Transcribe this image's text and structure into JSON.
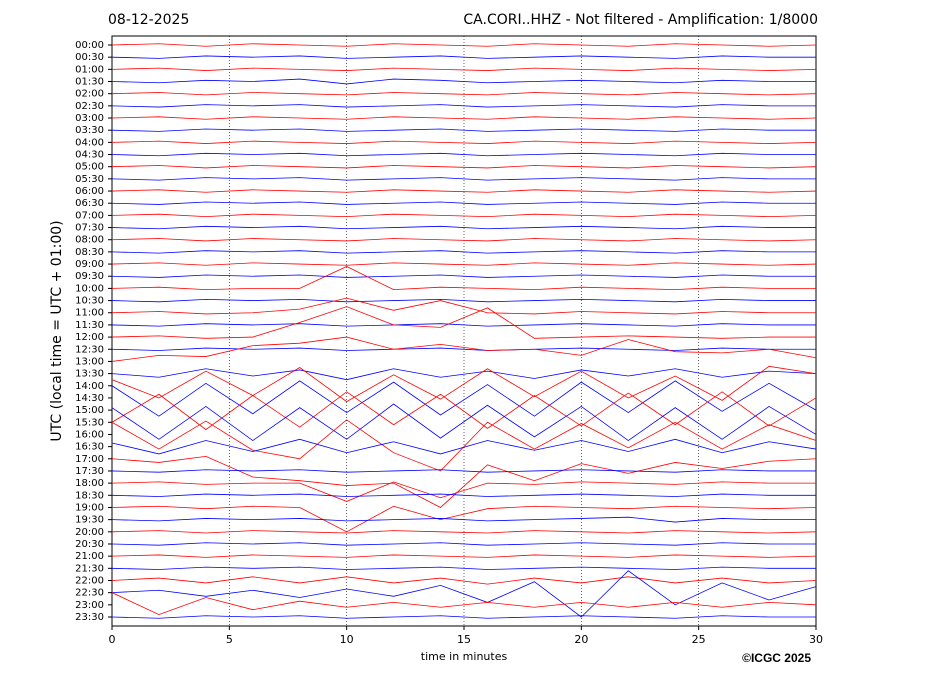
{
  "chart_data": {
    "type": "helicorder",
    "title_left": "08-12-2025",
    "title": "CA.CORI..HHZ - Not filtered - Amplification: 1/8000",
    "xlabel": "time in minutes",
    "ylabel": "UTC (local time = UTC + 01:00)",
    "footer": "©ICGC 2025",
    "grid": true,
    "colors": [
      "#ff0000",
      "#0000ff"
    ],
    "xlim": [
      0,
      30
    ],
    "xticks": [
      0,
      5,
      10,
      15,
      20,
      25,
      30
    ],
    "x": [
      0,
      2,
      4,
      6,
      8,
      10,
      12,
      14,
      16,
      18,
      20,
      22,
      24,
      26,
      28,
      30
    ],
    "categories": [
      "00:00",
      "00:30",
      "01:00",
      "01:30",
      "02:00",
      "02:30",
      "03:00",
      "03:30",
      "04:00",
      "04:30",
      "05:00",
      "05:30",
      "06:00",
      "06:30",
      "07:00",
      "07:30",
      "08:00",
      "08:30",
      "09:00",
      "09:30",
      "10:00",
      "10:30",
      "11:00",
      "11:30",
      "12:00",
      "12:30",
      "13:00",
      "13:30",
      "14:00",
      "14:30",
      "15:00",
      "15:30",
      "16:00",
      "16:30",
      "17:00",
      "17:30",
      "18:00",
      "18:30",
      "19:00",
      "19:30",
      "20:00",
      "20:30",
      "21:00",
      "21:30",
      "22:00",
      "22:30",
      "23:00",
      "23:30"
    ],
    "series": [
      {
        "values": [
          0,
          0.1,
          -0.1,
          0.1,
          0,
          -0.1,
          0.1,
          0,
          -0.1,
          0.1,
          0,
          -0.1,
          0.1,
          0,
          -0.1,
          0
        ]
      },
      {
        "values": [
          0,
          -0.1,
          0.1,
          0,
          0.1,
          -0.1,
          0,
          0.1,
          -0.1,
          0,
          0.1,
          0,
          -0.1,
          0.1,
          0,
          0
        ]
      },
      {
        "values": [
          0,
          0.1,
          -0.1,
          0.1,
          0,
          -0.1,
          0.1,
          0,
          -0.1,
          0.1,
          0,
          -0.1,
          0.1,
          0,
          -0.1,
          0
        ]
      },
      {
        "values": [
          0,
          -0.1,
          0.1,
          0,
          0.2,
          -0.2,
          0.2,
          0.1,
          -0.1,
          0,
          0.1,
          0,
          -0.1,
          0.1,
          0,
          0
        ]
      },
      {
        "values": [
          0,
          0.1,
          -0.1,
          0.1,
          0,
          -0.1,
          0.1,
          0,
          -0.1,
          0.1,
          0,
          -0.1,
          0.1,
          0,
          -0.1,
          0
        ]
      },
      {
        "values": [
          0,
          -0.1,
          0.1,
          0,
          0.1,
          -0.1,
          0,
          0.1,
          -0.1,
          0,
          0.1,
          0,
          -0.1,
          0.1,
          0,
          0
        ]
      },
      {
        "values": [
          0,
          0.1,
          -0.1,
          0.1,
          0,
          -0.1,
          0.1,
          0,
          -0.1,
          0.1,
          0,
          -0.1,
          0.1,
          0,
          -0.1,
          0
        ]
      },
      {
        "values": [
          0,
          -0.1,
          0.1,
          0,
          0.1,
          -0.1,
          0,
          0.1,
          -0.1,
          0,
          0.1,
          0,
          -0.1,
          0.1,
          0,
          0
        ]
      },
      {
        "values": [
          0,
          0.1,
          -0.1,
          0.1,
          0,
          -0.1,
          0.1,
          0,
          -0.1,
          0.1,
          0,
          -0.1,
          0.1,
          0,
          -0.1,
          0
        ]
      },
      {
        "values": [
          0,
          -0.1,
          0.1,
          0,
          0.1,
          -0.1,
          0,
          0.1,
          -0.1,
          0,
          0.1,
          0,
          -0.1,
          0.1,
          0,
          0
        ]
      },
      {
        "values": [
          0,
          0.1,
          -0.1,
          0.1,
          0,
          -0.1,
          0.1,
          0,
          -0.1,
          0.1,
          0,
          -0.1,
          0.1,
          0,
          -0.1,
          0
        ]
      },
      {
        "values": [
          0,
          -0.1,
          0.1,
          0,
          0.1,
          -0.1,
          0,
          0.1,
          -0.1,
          0,
          0.1,
          0,
          -0.1,
          0.1,
          0,
          0
        ]
      },
      {
        "values": [
          0,
          0.1,
          -0.1,
          0.1,
          0,
          -0.1,
          0.1,
          0,
          -0.1,
          0.1,
          0,
          -0.1,
          0.1,
          0,
          -0.1,
          0
        ]
      },
      {
        "values": [
          0,
          -0.1,
          0.1,
          0,
          0.1,
          -0.1,
          0,
          0.1,
          -0.1,
          0,
          0.1,
          0,
          -0.1,
          0.1,
          0,
          0
        ]
      },
      {
        "values": [
          0,
          0.1,
          -0.1,
          0.1,
          0,
          -0.1,
          0.1,
          0,
          -0.1,
          0.1,
          0,
          -0.1,
          0.1,
          0,
          -0.1,
          0
        ]
      },
      {
        "values": [
          0,
          -0.1,
          0.1,
          0,
          0.1,
          -0.1,
          0,
          0.1,
          -0.1,
          0,
          0.1,
          0,
          -0.1,
          0.1,
          0,
          0
        ]
      },
      {
        "values": [
          0,
          0.1,
          -0.1,
          0.1,
          0,
          -0.1,
          0.1,
          0,
          -0.1,
          0.1,
          0,
          -0.1,
          0.1,
          0,
          -0.1,
          0
        ]
      },
      {
        "values": [
          0,
          -0.1,
          0.1,
          0,
          0.1,
          -0.1,
          0,
          0.1,
          -0.1,
          0,
          0.1,
          0,
          -0.1,
          0.1,
          0,
          0
        ]
      },
      {
        "values": [
          0,
          0.1,
          -0.1,
          0.1,
          0,
          -0.1,
          0.1,
          0,
          -0.1,
          0.1,
          0,
          -0.1,
          0.1,
          0,
          -0.1,
          0
        ]
      },
      {
        "values": [
          0,
          -0.1,
          0.1,
          0,
          0.1,
          -0.1,
          0,
          0.1,
          -0.1,
          0,
          0.1,
          0,
          -0.1,
          0.1,
          0,
          0
        ]
      },
      {
        "values": [
          0,
          0.1,
          -0.1,
          0,
          0,
          1.8,
          -0.1,
          0.1,
          0,
          -0.1,
          0.1,
          0,
          -0.1,
          0.1,
          0,
          0
        ]
      },
      {
        "values": [
          0,
          -0.1,
          0.1,
          0,
          0.1,
          -0.1,
          0,
          0.1,
          -0.1,
          0,
          0.1,
          0,
          -0.1,
          0.1,
          0,
          0
        ]
      },
      {
        "values": [
          0,
          0.1,
          -0.1,
          0,
          0.3,
          1.2,
          0.2,
          1,
          0,
          -0.1,
          0.1,
          0,
          -0.1,
          0.1,
          0,
          0
        ]
      },
      {
        "values": [
          0,
          -0.1,
          0.1,
          0,
          0.1,
          -0.1,
          0,
          0.1,
          -0.1,
          0,
          0.1,
          0,
          -0.1,
          0.1,
          0,
          0
        ]
      },
      {
        "values": [
          0,
          0.1,
          -0.1,
          0,
          1.2,
          2.5,
          1,
          0.8,
          2.4,
          -0.1,
          0,
          0.1,
          0,
          -0.1,
          0,
          0
        ]
      },
      {
        "values": [
          0,
          -0.1,
          0.1,
          0,
          0.1,
          -0.1,
          0,
          0.1,
          -0.1,
          0,
          0.1,
          0,
          -0.1,
          0.1,
          0,
          0
        ]
      },
      {
        "values": [
          0,
          0.5,
          0.4,
          1.3,
          1.5,
          2,
          1,
          1.4,
          0.9,
          1,
          0.5,
          1.8,
          0.8,
          0.7,
          1,
          0.3
        ]
      },
      {
        "values": [
          0,
          -0.3,
          0.4,
          -0.2,
          0.3,
          -0.5,
          0.4,
          -0.3,
          0.2,
          -0.4,
          0.3,
          -0.2,
          0.4,
          -0.3,
          0.2,
          0
        ]
      },
      {
        "values": [
          0.5,
          -1,
          1.2,
          -0.8,
          1.5,
          -1.3,
          0.9,
          -1.1,
          1.4,
          -0.9,
          1.2,
          -1,
          0.8,
          -1.2,
          1.6,
          1
        ]
      },
      {
        "values": [
          1,
          -1.5,
          1.2,
          -1.3,
          1.4,
          -1.2,
          1.3,
          -1.4,
          1.1,
          -1.5,
          1.3,
          -1.2,
          1.4,
          -1.1,
          1.2,
          -1
        ]
      },
      {
        "values": [
          -1,
          1.3,
          -1.6,
          1.2,
          -1.4,
          1.5,
          -1.2,
          1.3,
          -1.5,
          1.2,
          -1.3,
          1.4,
          -1.2,
          1.5,
          -1.3,
          1
        ]
      },
      {
        "values": [
          1.2,
          -1.4,
          1.3,
          -1.5,
          1.2,
          -1.4,
          1.5,
          -1.3,
          1.4,
          -1.2,
          1.3,
          -1.5,
          1.2,
          -1.4,
          1.3,
          -1
        ]
      },
      {
        "values": [
          1,
          -1.2,
          1.1,
          -1.3,
          -2,
          1.2,
          -1.5,
          -3,
          1,
          -1.2,
          0.9,
          -1.1,
          1,
          -1.2,
          0.8,
          -0.5
        ]
      },
      {
        "values": [
          0.3,
          -0.6,
          0.5,
          -0.4,
          0.6,
          -0.5,
          0.4,
          -0.6,
          0.5,
          -0.3,
          0.5,
          -0.4,
          0.6,
          -0.5,
          0.4,
          -0.2
        ]
      },
      {
        "values": [
          0,
          -0.3,
          0.2,
          -1.5,
          -1.8,
          -2.2,
          -2,
          -4,
          -0.5,
          -1.8,
          -0.4,
          -1.2,
          -0.3,
          -0.8,
          -0.2,
          0
        ]
      },
      {
        "values": [
          0,
          -0.1,
          0.1,
          0,
          0.1,
          -0.1,
          0,
          0.1,
          -0.1,
          0,
          0.1,
          0,
          -0.1,
          0.1,
          0,
          0
        ]
      },
      {
        "values": [
          0,
          0.1,
          -0.1,
          0,
          0,
          -1.5,
          0.1,
          -1.2,
          0,
          -0.1,
          0.1,
          0,
          -0.1,
          0.1,
          0,
          0
        ]
      },
      {
        "values": [
          0,
          -0.1,
          0.1,
          0,
          0.1,
          -0.1,
          0,
          0.1,
          -0.1,
          0,
          0.1,
          0,
          -0.1,
          0.1,
          0,
          0
        ]
      },
      {
        "values": [
          0,
          0.1,
          -0.1,
          0.1,
          0,
          -2,
          0.1,
          -1,
          -0.1,
          0.1,
          0,
          -0.1,
          0.1,
          0,
          -0.1,
          0
        ]
      },
      {
        "values": [
          0,
          -0.1,
          0.1,
          0,
          0.1,
          -0.1,
          0,
          0.1,
          -0.1,
          0,
          0.1,
          0.2,
          -0.2,
          0.1,
          0,
          0
        ]
      },
      {
        "values": [
          0,
          0.1,
          -0.1,
          0.1,
          0,
          -0.1,
          0.1,
          0,
          -0.1,
          0.1,
          0,
          -0.1,
          0.1,
          0,
          -0.1,
          0
        ]
      },
      {
        "values": [
          0,
          -0.1,
          0.1,
          0,
          0.1,
          -0.1,
          0,
          0.1,
          -0.1,
          0,
          0.1,
          0,
          -0.1,
          0.1,
          0,
          0
        ]
      },
      {
        "values": [
          0,
          0.1,
          -0.1,
          0.1,
          0,
          -0.1,
          0.1,
          0,
          -0.1,
          0.1,
          0,
          -0.1,
          0.1,
          0,
          -0.1,
          0
        ]
      },
      {
        "values": [
          0,
          -0.1,
          0.1,
          0,
          0.1,
          -0.1,
          0,
          0.1,
          -0.1,
          0,
          0.1,
          0,
          -0.1,
          0.1,
          0,
          0
        ]
      },
      {
        "values": [
          0,
          0.2,
          -0.2,
          0.3,
          -0.2,
          0.3,
          -0.2,
          0.2,
          -0.3,
          0.2,
          -0.2,
          0.3,
          -0.2,
          0.2,
          -0.2,
          0
        ]
      },
      {
        "values": [
          0,
          0.2,
          -0.3,
          0.2,
          -0.4,
          0.3,
          -0.3,
          0.6,
          -0.8,
          0.9,
          -2,
          1.8,
          -1,
          0.8,
          -0.6,
          0.5
        ]
      },
      {
        "values": [
          1,
          -0.8,
          0.6,
          -0.4,
          0.3,
          -0.2,
          0.2,
          -0.2,
          0.2,
          -0.2,
          0.2,
          -0.2,
          0.2,
          -0.2,
          0.2,
          0
        ]
      },
      {
        "values": [
          0,
          -0.1,
          0.1,
          0,
          0.1,
          -0.1,
          0,
          0.1,
          -0.1,
          0,
          0.1,
          0,
          -0.1,
          0.1,
          0,
          0
        ]
      }
    ]
  }
}
